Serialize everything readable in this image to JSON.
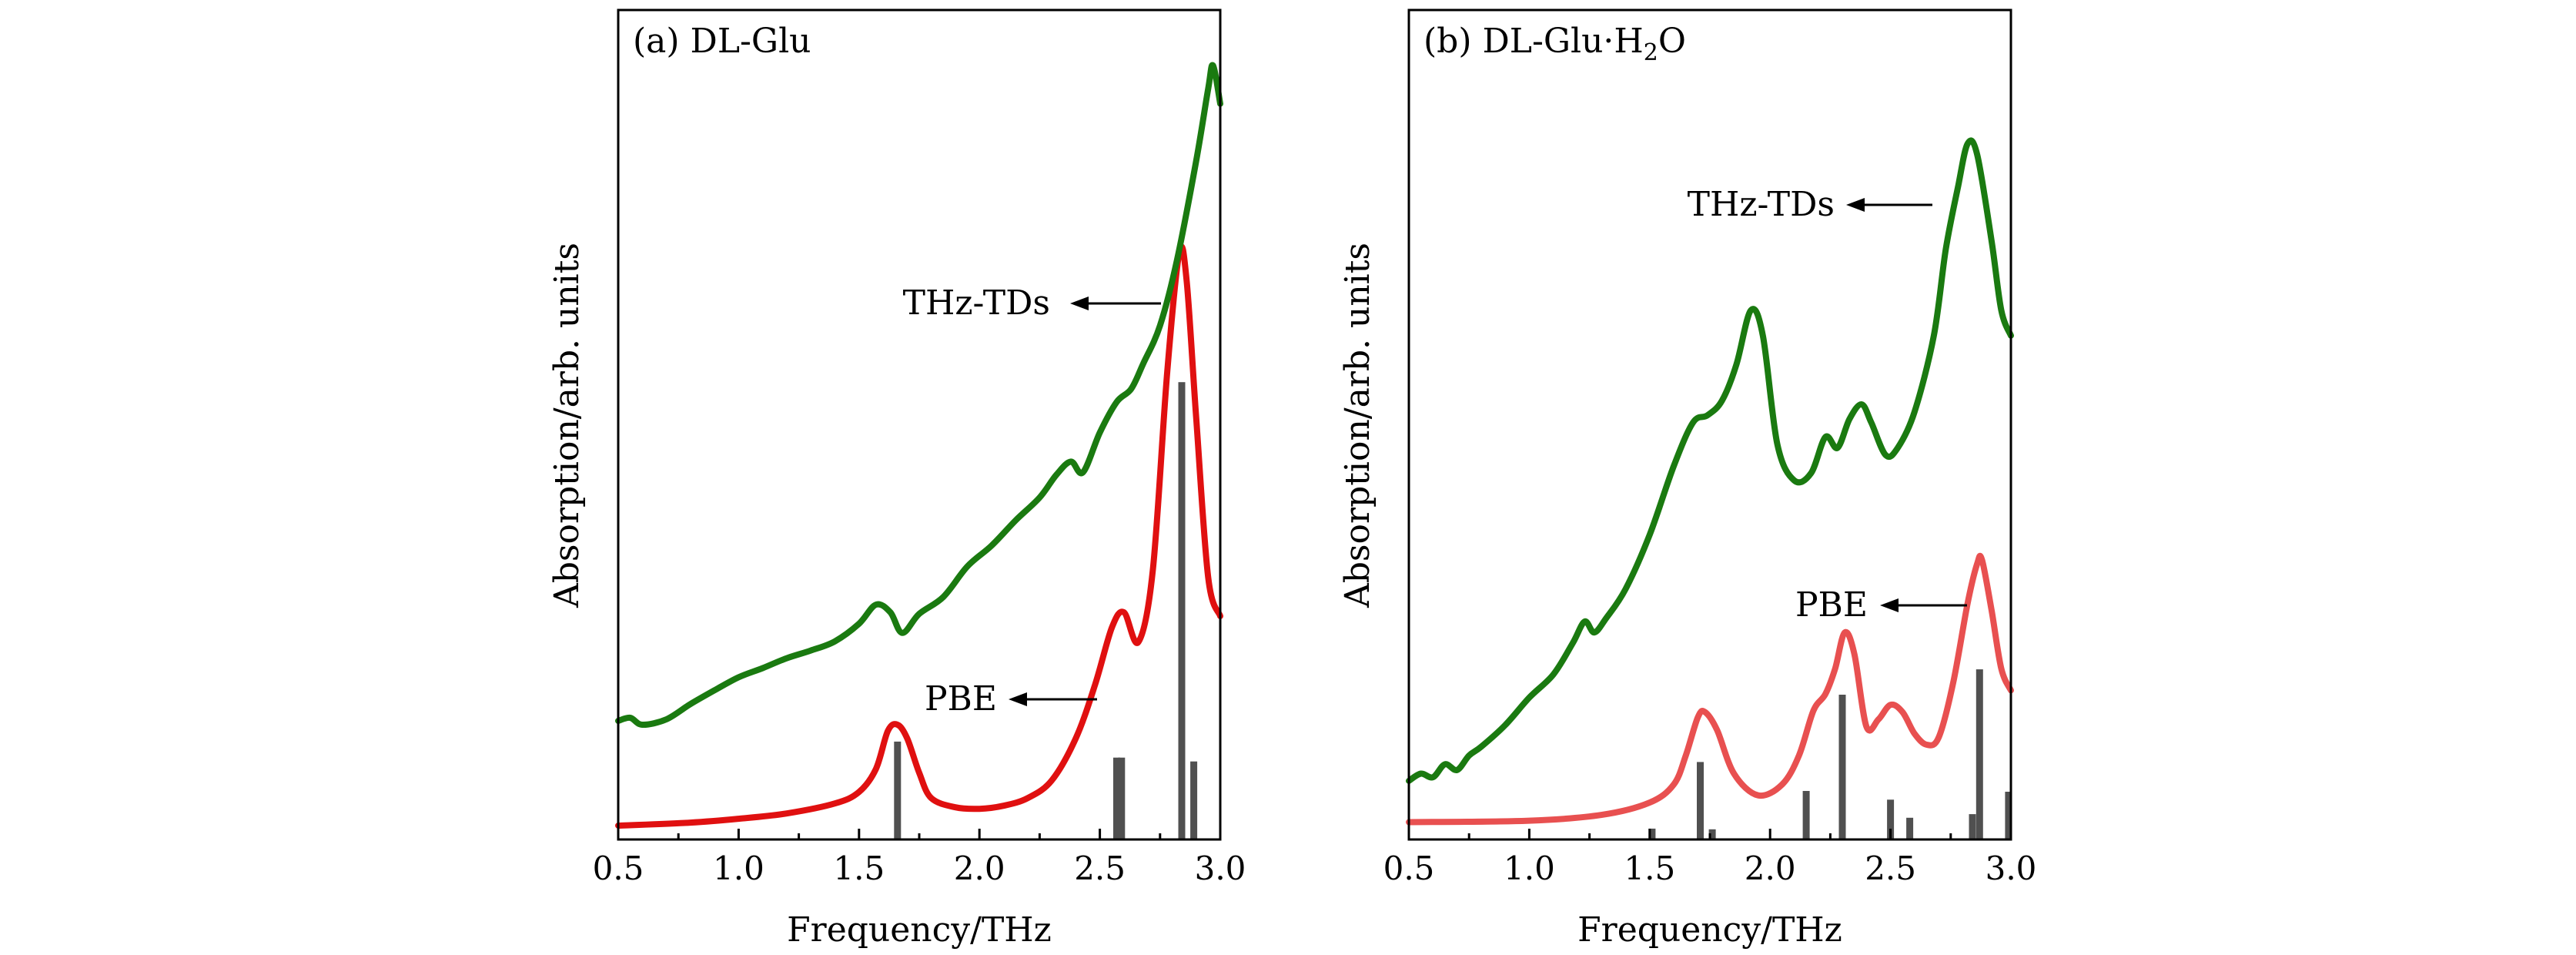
{
  "chart_data": [
    {
      "panel_label": "(a) DL-Glu",
      "type": "line",
      "xlabel": "Frequency/THz",
      "ylabel": "Absorption/arb. units",
      "xlim": [
        0.5,
        3.0
      ],
      "ylim": [
        0,
        1
      ],
      "x_ticks": [
        "0.5",
        "1.0",
        "1.5",
        "2.0",
        "2.5",
        "3.0"
      ],
      "series": [
        {
          "name": "THz-TDs",
          "color": "#1a7a10",
          "x": [
            0.5,
            0.55,
            0.6,
            0.7,
            0.8,
            0.9,
            1.0,
            1.1,
            1.2,
            1.3,
            1.4,
            1.5,
            1.57,
            1.63,
            1.68,
            1.75,
            1.85,
            1.95,
            2.05,
            2.15,
            2.25,
            2.32,
            2.38,
            2.43,
            2.5,
            2.57,
            2.63,
            2.68,
            2.75,
            2.82,
            2.9,
            2.95,
            2.97,
            3.0
          ],
          "y": [
            0.143,
            0.147,
            0.138,
            0.145,
            0.165,
            0.183,
            0.2,
            0.212,
            0.225,
            0.235,
            0.247,
            0.27,
            0.295,
            0.285,
            0.258,
            0.283,
            0.305,
            0.345,
            0.372,
            0.405,
            0.435,
            0.465,
            0.482,
            0.468,
            0.52,
            0.56,
            0.577,
            0.61,
            0.66,
            0.745,
            0.875,
            0.97,
            1.0,
            0.95
          ]
        },
        {
          "name": "PBE",
          "color": "#e01010",
          "x": [
            0.5,
            0.8,
            1.0,
            1.2,
            1.4,
            1.5,
            1.57,
            1.62,
            1.66,
            1.7,
            1.75,
            1.8,
            1.9,
            2.0,
            2.1,
            2.2,
            2.3,
            2.4,
            2.48,
            2.55,
            2.6,
            2.66,
            2.72,
            2.78,
            2.83,
            2.86,
            2.9,
            2.95,
            3.0
          ],
          "y": [
            0.006,
            0.01,
            0.015,
            0.022,
            0.035,
            0.05,
            0.08,
            0.13,
            0.138,
            0.12,
            0.075,
            0.042,
            0.03,
            0.028,
            0.032,
            0.042,
            0.065,
            0.12,
            0.19,
            0.265,
            0.285,
            0.246,
            0.34,
            0.6,
            0.755,
            0.72,
            0.54,
            0.33,
            0.28
          ]
        }
      ],
      "stick_spectrum": {
        "name": "PBE modes",
        "color": "#505050",
        "x": [
          1.66,
          2.57,
          2.59,
          2.84,
          2.89
        ],
        "height": [
          0.128,
          0.107,
          0.107,
          0.598,
          0.102
        ]
      },
      "annotations": [
        {
          "text": "THz-TDs",
          "arrow": "left",
          "points_to": "THz-TDs"
        },
        {
          "text": "PBE",
          "arrow": "left",
          "points_to": "PBE"
        }
      ]
    },
    {
      "panel_label": "(b) DL-Glu·H2O",
      "panel_label_parts": {
        "prefix": "(b) DL-Glu·H",
        "subscript": "2",
        "suffix": "O"
      },
      "type": "line",
      "xlabel": "Frequency/THz",
      "ylabel": "Absorption/arb. units",
      "xlim": [
        0.5,
        3.0
      ],
      "ylim": [
        0,
        1
      ],
      "x_ticks": [
        "0.5",
        "1.0",
        "1.5",
        "2.0",
        "2.5",
        "3.0"
      ],
      "series": [
        {
          "name": "THz-TDs",
          "color": "#1a7a10",
          "x": [
            0.5,
            0.55,
            0.6,
            0.65,
            0.7,
            0.75,
            0.8,
            0.9,
            1.0,
            1.1,
            1.18,
            1.23,
            1.27,
            1.32,
            1.4,
            1.5,
            1.6,
            1.68,
            1.74,
            1.8,
            1.86,
            1.92,
            1.97,
            2.03,
            2.1,
            2.17,
            2.23,
            2.28,
            2.33,
            2.38,
            2.42,
            2.48,
            2.53,
            2.6,
            2.68,
            2.73,
            2.78,
            2.82,
            2.86,
            2.92,
            2.96,
            3.0
          ],
          "y": [
            0.065,
            0.075,
            0.07,
            0.088,
            0.08,
            0.1,
            0.112,
            0.142,
            0.18,
            0.212,
            0.255,
            0.285,
            0.27,
            0.29,
            0.33,
            0.405,
            0.5,
            0.56,
            0.57,
            0.59,
            0.64,
            0.715,
            0.68,
            0.53,
            0.48,
            0.49,
            0.54,
            0.525,
            0.565,
            0.585,
            0.56,
            0.515,
            0.525,
            0.575,
            0.68,
            0.8,
            0.885,
            0.945,
            0.93,
            0.81,
            0.715,
            0.68
          ]
        },
        {
          "name": "PBE",
          "color": "#e85050",
          "x": [
            0.5,
            1.0,
            1.3,
            1.5,
            1.6,
            1.65,
            1.7,
            1.73,
            1.78,
            1.85,
            1.95,
            2.05,
            2.12,
            2.18,
            2.23,
            2.27,
            2.31,
            2.35,
            2.4,
            2.45,
            2.5,
            2.55,
            2.6,
            2.65,
            2.7,
            2.76,
            2.82,
            2.86,
            2.88,
            2.92,
            2.96,
            3.0
          ],
          "y": [
            0.008,
            0.01,
            0.018,
            0.035,
            0.06,
            0.1,
            0.153,
            0.16,
            0.135,
            0.075,
            0.045,
            0.06,
            0.1,
            0.162,
            0.185,
            0.22,
            0.27,
            0.24,
            0.14,
            0.15,
            0.17,
            0.16,
            0.13,
            0.115,
            0.125,
            0.2,
            0.31,
            0.365,
            0.37,
            0.3,
            0.22,
            0.19
          ]
        }
      ],
      "stick_spectrum": {
        "name": "PBE modes",
        "color": "#505050",
        "x": [
          1.51,
          1.71,
          1.76,
          2.15,
          2.3,
          2.5,
          2.58,
          2.84,
          2.87,
          2.99
        ],
        "height": [
          0.015,
          0.107,
          0.014,
          0.067,
          0.2,
          0.055,
          0.03,
          0.035,
          0.235,
          0.066
        ]
      },
      "annotations": [
        {
          "text": "THz-TDs",
          "arrow": "left",
          "points_to": "THz-TDs"
        },
        {
          "text": "PBE",
          "arrow": "left",
          "points_to": "PBE"
        }
      ]
    }
  ]
}
